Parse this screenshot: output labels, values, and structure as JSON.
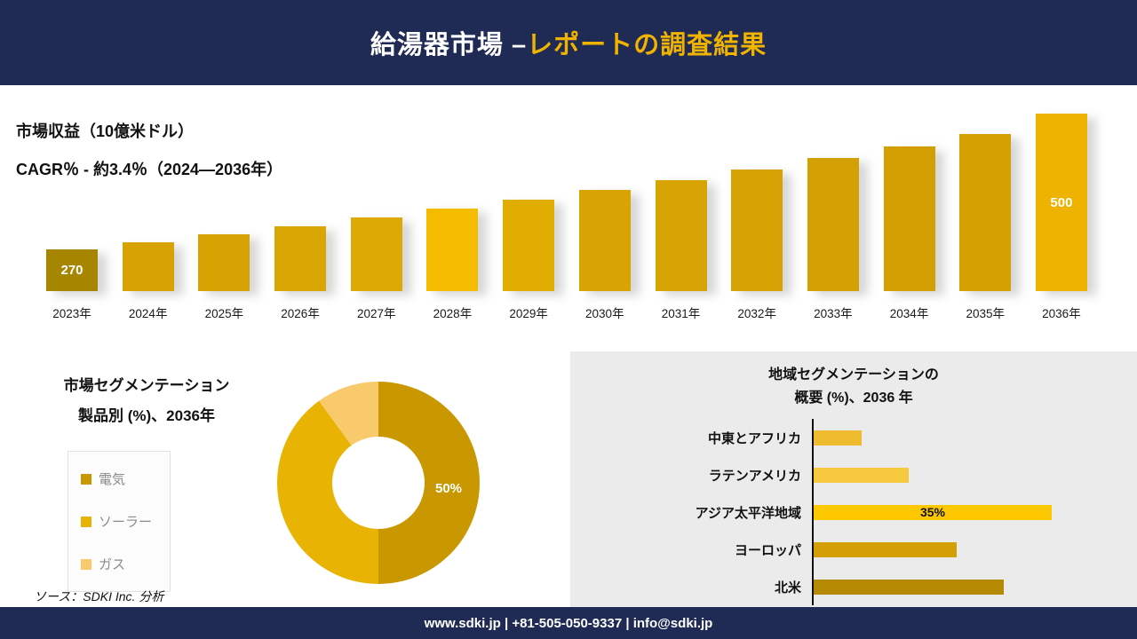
{
  "header": {
    "title_prefix": "給湯器市場 –",
    "title_accent": "レポートの調査結果"
  },
  "revenue": {
    "metric_label": "市場収益（10億米ドル）",
    "cagr_label": "CAGR％ - 約3.4％（2024―2036年）"
  },
  "segmentation": {
    "title_line1": "市場セグメンテーション",
    "title_line2": "製品別 (%)、2036年",
    "legend": [
      {
        "label": "電気",
        "color": "#c99800"
      },
      {
        "label": "ソーラー",
        "color": "#e9b303"
      },
      {
        "label": "ガス",
        "color": "#f8ca6b"
      }
    ],
    "center_label": "50%"
  },
  "region": {
    "title_line1": "地域セグメンテーションの",
    "title_line2": "概要 (%)、2036 年"
  },
  "chart_data": [
    {
      "type": "bar",
      "title": "市場収益（10億米ドル）",
      "subtitle": "CAGR％ - 約3.4％（2024―2036年）",
      "categories": [
        "2023年",
        "2024年",
        "2025年",
        "2026年",
        "2027年",
        "2028年",
        "2029年",
        "2030年",
        "2031年",
        "2032年",
        "2033年",
        "2034年",
        "2035年",
        "2036年"
      ],
      "values": [
        270,
        283,
        296,
        310,
        324,
        339,
        355,
        371,
        388,
        406,
        425,
        444,
        465,
        500
      ],
      "ylim": [
        200,
        500
      ],
      "grid": false,
      "legend": false,
      "bar_colors": [
        "#a68500",
        "#d6a303",
        "#d6a303",
        "#d9a503",
        "#ddaa04",
        "#f4bb01",
        "#e2ad03",
        "#d8a403",
        "#d8a403",
        "#d6a203",
        "#d4a003",
        "#d29e02",
        "#d4a002",
        "#eeb200"
      ],
      "value_labels": {
        "0": "270",
        "13": "500"
      }
    },
    {
      "type": "pie",
      "donut": true,
      "title": "市場セグメンテーション 製品別 (%)、2036年",
      "labels": [
        "電気",
        "ソーラー",
        "ガス"
      ],
      "values": [
        50,
        40,
        10
      ],
      "colors": [
        "#c99800",
        "#e9b303",
        "#f8ca6b"
      ],
      "value_labels": {
        "0": "50%"
      },
      "legend_position": "left"
    },
    {
      "type": "bar",
      "orientation": "horizontal",
      "title": "地域セグメンテーションの概要 (%)、2036 年",
      "categories": [
        "中東とアフリカ",
        "ラテンアメリカ",
        "アジア太平洋地域",
        "ヨーロッパ",
        "北米"
      ],
      "values": [
        7,
        14,
        35,
        21,
        28
      ],
      "colors": [
        "#eebc2e",
        "#f6c93f",
        "#fdc800",
        "#d39f04",
        "#b68903"
      ],
      "value_labels": {
        "2": "35%"
      },
      "grid": false,
      "legend": false
    }
  ],
  "source_note": "ソース：SDKI Inc. 分析",
  "footer": {
    "text": "www.sdki.jp | +81-505-050-9337 | info@sdki.jp"
  }
}
